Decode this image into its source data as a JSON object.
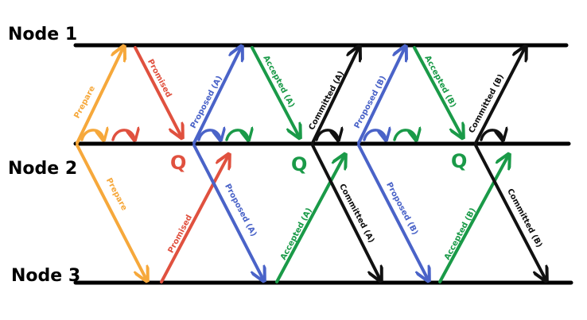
{
  "nodes": [
    {
      "id": "node1",
      "label": "Node 1"
    },
    {
      "id": "node2",
      "label": "Node 2"
    },
    {
      "id": "node3",
      "label": "Node 3"
    }
  ],
  "colors": {
    "prepare": "#f6a83b",
    "promise": "#e0513f",
    "propose": "#4a63c8",
    "accept": "#1a9a48",
    "commit": "#111111",
    "timeline": "#000000"
  },
  "messages": [
    {
      "key": "m1",
      "label": "Prepare",
      "color": "prepare"
    },
    {
      "key": "m2",
      "label": "Promised",
      "color": "promise"
    },
    {
      "key": "m3",
      "label": "Prepare",
      "color": "prepare"
    },
    {
      "key": "m4",
      "label": "Promised",
      "color": "promise"
    },
    {
      "key": "m5",
      "label": "Proposed (A)",
      "color": "propose"
    },
    {
      "key": "m6",
      "label": "Accepted (A)",
      "color": "accept"
    },
    {
      "key": "m7",
      "label": "Proposed (A)",
      "color": "propose"
    },
    {
      "key": "m8",
      "label": "Accepted (A)",
      "color": "accept"
    },
    {
      "key": "m9",
      "label": "Committed (A)",
      "color": "commit"
    },
    {
      "key": "m10",
      "label": "Committed (A)",
      "color": "commit"
    },
    {
      "key": "m11",
      "label": "Proposed (B)",
      "color": "propose"
    },
    {
      "key": "m12",
      "label": "Accepted (B)",
      "color": "accept"
    },
    {
      "key": "m13",
      "label": "Proposed (B)",
      "color": "propose"
    },
    {
      "key": "m14",
      "label": "Accepted (B)",
      "color": "accept"
    },
    {
      "key": "m15",
      "label": "Committed (B)",
      "color": "commit"
    },
    {
      "key": "m16",
      "label": "Committed (B)",
      "color": "commit"
    }
  ],
  "quorum_markers": [
    {
      "key": "q1",
      "label": "Q",
      "color": "promise"
    },
    {
      "key": "q2",
      "label": "Q",
      "color": "accept"
    },
    {
      "key": "q3",
      "label": "Q",
      "color": "accept"
    }
  ],
  "self_loops": [
    {
      "key": "s1",
      "color": "prepare"
    },
    {
      "key": "s2",
      "color": "promise"
    },
    {
      "key": "s3",
      "color": "propose"
    },
    {
      "key": "s4",
      "color": "accept"
    },
    {
      "key": "s5",
      "color": "commit"
    },
    {
      "key": "s6",
      "color": "propose"
    },
    {
      "key": "s7",
      "color": "accept"
    },
    {
      "key": "s8",
      "color": "commit"
    }
  ]
}
